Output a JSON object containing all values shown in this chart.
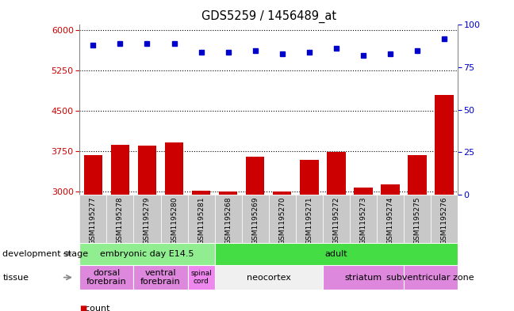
{
  "title": "GDS5259 / 1456489_at",
  "samples": [
    "GSM1195277",
    "GSM1195278",
    "GSM1195279",
    "GSM1195280",
    "GSM1195281",
    "GSM1195268",
    "GSM1195269",
    "GSM1195270",
    "GSM1195271",
    "GSM1195272",
    "GSM1195273",
    "GSM1195274",
    "GSM1195275",
    "GSM1195276"
  ],
  "counts": [
    3680,
    3870,
    3860,
    3920,
    3020,
    3010,
    3650,
    3010,
    3590,
    3740,
    3080,
    3140,
    3680,
    4800
  ],
  "percentiles": [
    88,
    89,
    89,
    89,
    84,
    84,
    85,
    83,
    84,
    86,
    82,
    83,
    85,
    92
  ],
  "ylim_left": [
    2950,
    6100
  ],
  "ylim_right": [
    0,
    100
  ],
  "yticks_left": [
    3000,
    3750,
    4500,
    5250,
    6000
  ],
  "yticks_right": [
    0,
    25,
    50,
    75,
    100
  ],
  "bar_color": "#cc0000",
  "dot_color": "#0000cc",
  "dev_stage_groups": [
    {
      "label": "embryonic day E14.5",
      "start": 0,
      "end": 4,
      "color": "#90ee90"
    },
    {
      "label": "adult",
      "start": 5,
      "end": 13,
      "color": "#44dd44"
    }
  ],
  "tissue_groups": [
    {
      "label": "dorsal\nforebrain",
      "start": 0,
      "end": 1,
      "color": "#dd88dd"
    },
    {
      "label": "ventral\nforebrain",
      "start": 2,
      "end": 3,
      "color": "#dd88dd"
    },
    {
      "label": "spinal\ncord",
      "start": 4,
      "end": 4,
      "color": "#ee88ee"
    },
    {
      "label": "neocortex",
      "start": 5,
      "end": 8,
      "color": "#f0f0f0"
    },
    {
      "label": "striatum",
      "start": 9,
      "end": 11,
      "color": "#dd88dd"
    },
    {
      "label": "subventricular zone",
      "start": 12,
      "end": 13,
      "color": "#dd88dd"
    }
  ],
  "left_axis_color": "#cc0000",
  "right_axis_color": "#0000cc",
  "grid_color": "#000000",
  "xticklabel_bg": "#c8c8c8"
}
